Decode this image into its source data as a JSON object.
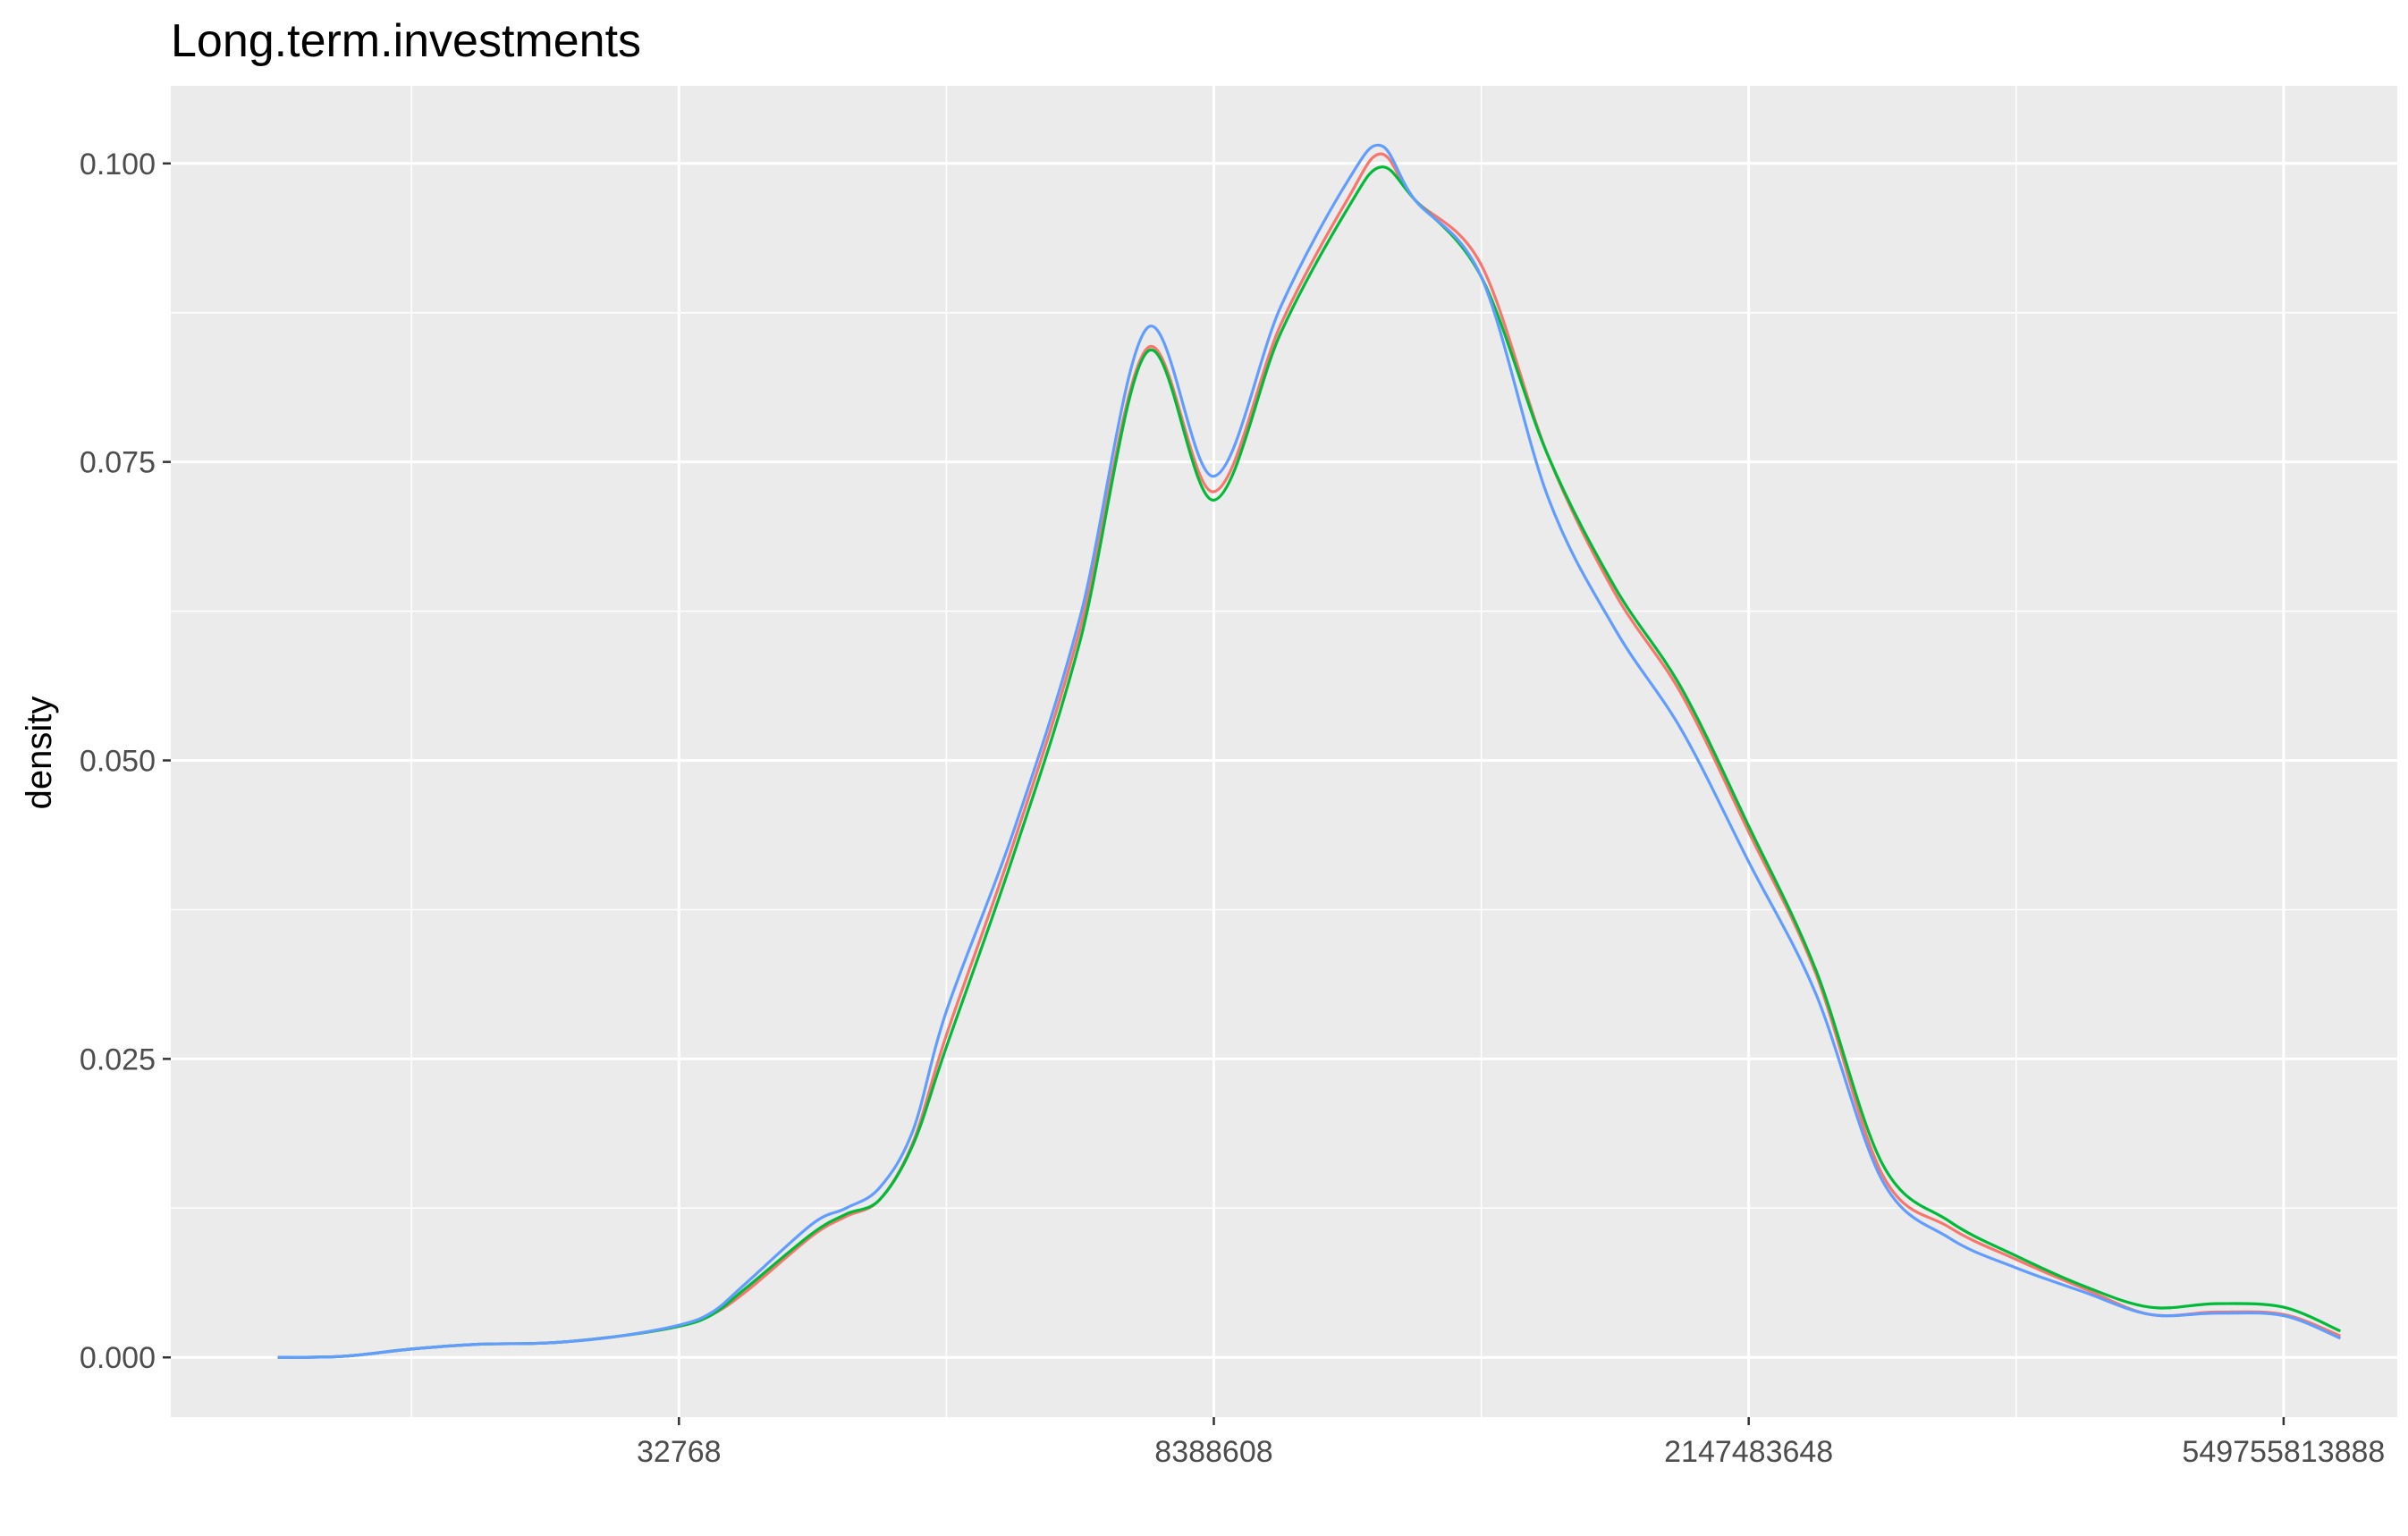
{
  "chart_data": {
    "type": "line",
    "title": "Long.term.investments",
    "ylabel": "density",
    "xlabel": "",
    "x_scale": "log2",
    "x_ticks": [
      {
        "label": "32768",
        "log2": 15
      },
      {
        "label": "8388608",
        "log2": 23
      },
      {
        "label": "2147483648",
        "log2": 31
      },
      {
        "label": "549755813888",
        "log2": 39
      }
    ],
    "y_ticks": [
      "0.000",
      "0.025",
      "0.050",
      "0.075",
      "0.100"
    ],
    "ylim": [
      -0.005,
      0.1065
    ],
    "xlim_log2": [
      7.4,
      40.7
    ],
    "grid": true,
    "legend": "none",
    "series": [
      {
        "color": "#F8766D",
        "points": [
          [
            9,
            0
          ],
          [
            10,
            0.0001
          ],
          [
            11,
            0.0007
          ],
          [
            12,
            0.0011
          ],
          [
            13,
            0.0012
          ],
          [
            14,
            0.0017
          ],
          [
            15,
            0.0026
          ],
          [
            15.5,
            0.0036
          ],
          [
            16,
            0.0055
          ],
          [
            17,
            0.0102
          ],
          [
            17.5,
            0.0118
          ],
          [
            18,
            0.0132
          ],
          [
            18.5,
            0.018
          ],
          [
            19,
            0.027
          ],
          [
            20,
            0.043
          ],
          [
            21,
            0.061
          ],
          [
            22,
            0.0845
          ],
          [
            23,
            0.0725
          ],
          [
            24,
            0.0865
          ],
          [
            25,
            0.097
          ],
          [
            25.5,
            0.1008
          ],
          [
            26,
            0.097
          ],
          [
            27,
            0.0915
          ],
          [
            28,
            0.0755
          ],
          [
            29,
            0.064
          ],
          [
            30,
            0.0555
          ],
          [
            31,
            0.044
          ],
          [
            32,
            0.0322
          ],
          [
            33,
            0.0153
          ],
          [
            34,
            0.0109
          ],
          [
            35,
            0.0082
          ],
          [
            36,
            0.0058
          ],
          [
            37,
            0.0036
          ],
          [
            38,
            0.0038
          ],
          [
            39,
            0.0036
          ],
          [
            39.85,
            0.0018
          ]
        ]
      },
      {
        "color": "#00BA38",
        "points": [
          [
            9,
            0
          ],
          [
            10,
            0.0001
          ],
          [
            11,
            0.0007
          ],
          [
            12,
            0.0011
          ],
          [
            13,
            0.0012
          ],
          [
            14,
            0.0017
          ],
          [
            15,
            0.0026
          ],
          [
            15.5,
            0.0036
          ],
          [
            16,
            0.0058
          ],
          [
            17,
            0.0104
          ],
          [
            17.5,
            0.012
          ],
          [
            18,
            0.0132
          ],
          [
            18.5,
            0.0178
          ],
          [
            19,
            0.026
          ],
          [
            20,
            0.042
          ],
          [
            21,
            0.06
          ],
          [
            22,
            0.0842
          ],
          [
            23,
            0.0718
          ],
          [
            24,
            0.0858
          ],
          [
            25,
            0.0962
          ],
          [
            25.5,
            0.0997
          ],
          [
            26,
            0.097
          ],
          [
            27,
            0.0905
          ],
          [
            28,
            0.0755
          ],
          [
            29,
            0.0645
          ],
          [
            30,
            0.056
          ],
          [
            31,
            0.0445
          ],
          [
            32,
            0.0325
          ],
          [
            33,
            0.0162
          ],
          [
            34,
            0.0114
          ],
          [
            35,
            0.0085
          ],
          [
            36,
            0.006
          ],
          [
            37,
            0.0042
          ],
          [
            38,
            0.0045
          ],
          [
            39,
            0.0042
          ],
          [
            39.85,
            0.0022
          ]
        ]
      },
      {
        "color": "#619CFF",
        "points": [
          [
            9,
            0
          ],
          [
            10,
            0.0001
          ],
          [
            11,
            0.0007
          ],
          [
            12,
            0.0011
          ],
          [
            13,
            0.0012
          ],
          [
            14,
            0.0017
          ],
          [
            15,
            0.0027
          ],
          [
            15.5,
            0.0038
          ],
          [
            16,
            0.0062
          ],
          [
            17,
            0.0112
          ],
          [
            17.5,
            0.0125
          ],
          [
            18,
            0.0142
          ],
          [
            18.5,
            0.019
          ],
          [
            19,
            0.029
          ],
          [
            20,
            0.044
          ],
          [
            21,
            0.062
          ],
          [
            22,
            0.0862
          ],
          [
            23,
            0.0738
          ],
          [
            24,
            0.088
          ],
          [
            25,
            0.0985
          ],
          [
            25.5,
            0.1015
          ],
          [
            26,
            0.097
          ],
          [
            27,
            0.0905
          ],
          [
            28,
            0.072
          ],
          [
            29,
            0.061
          ],
          [
            30,
            0.0525
          ],
          [
            31,
            0.0415
          ],
          [
            32,
            0.0305
          ],
          [
            33,
            0.0148
          ],
          [
            34,
            0.01
          ],
          [
            35,
            0.0075
          ],
          [
            36,
            0.0055
          ],
          [
            37,
            0.0036
          ],
          [
            38,
            0.0037
          ],
          [
            39,
            0.0035
          ],
          [
            39.85,
            0.0016
          ]
        ]
      }
    ]
  }
}
